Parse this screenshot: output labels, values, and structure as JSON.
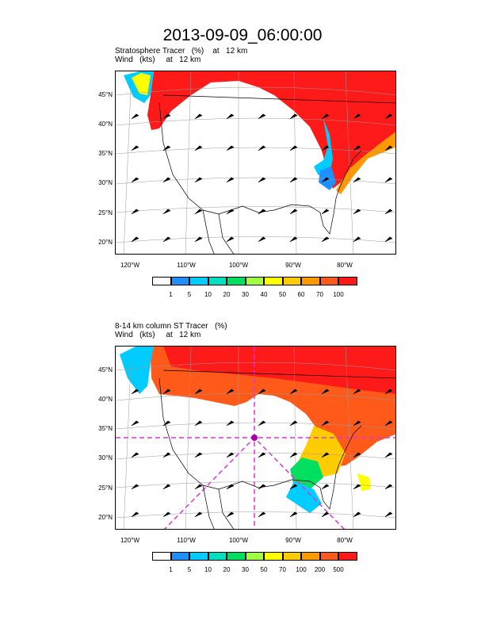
{
  "title": "2013-09-09_06:00:00",
  "panels": [
    {
      "title_line1": "Stratosphere Tracer   (%)    at   12 km",
      "title_line2": "Wind   (kts)     at   12 km",
      "lat_labels": [
        "45°N",
        "40°N",
        "35°N",
        "30°N",
        "25°N",
        "20°N"
      ],
      "lon_labels": [
        "120°W",
        "110°W",
        "100°W",
        "90°W",
        "80°W"
      ],
      "colorbar_labels": [
        "1",
        "5",
        "10",
        "20",
        "30",
        "40",
        "50",
        "60",
        "70",
        "100"
      ],
      "colorbar_colors": [
        "#ffffff",
        "#1e90ff",
        "#00ccff",
        "#00e0c0",
        "#00e060",
        "#a0ff40",
        "#ffff00",
        "#ffcc00",
        "#ff9900",
        "#ff5a1a",
        "#ff1a1a"
      ]
    },
    {
      "title_line1": "8-14 km column ST Tracer   (%)",
      "title_line2": "Wind   (kts)     at   12 km",
      "lat_labels": [
        "45°N",
        "40°N",
        "35°N",
        "30°N",
        "25°N",
        "20°N"
      ],
      "lon_labels": [
        "120°W",
        "110°W",
        "100°W",
        "90°W",
        "80°W"
      ],
      "colorbar_labels": [
        "1",
        "5",
        "10",
        "20",
        "30",
        "50",
        "70",
        "100",
        "200",
        "500"
      ],
      "colorbar_colors": [
        "#ffffff",
        "#1e90ff",
        "#00ccff",
        "#00e0c0",
        "#00e060",
        "#a0ff40",
        "#ffff00",
        "#ffcc00",
        "#ff9900",
        "#ff5a1a",
        "#ff1a1a"
      ]
    }
  ]
}
